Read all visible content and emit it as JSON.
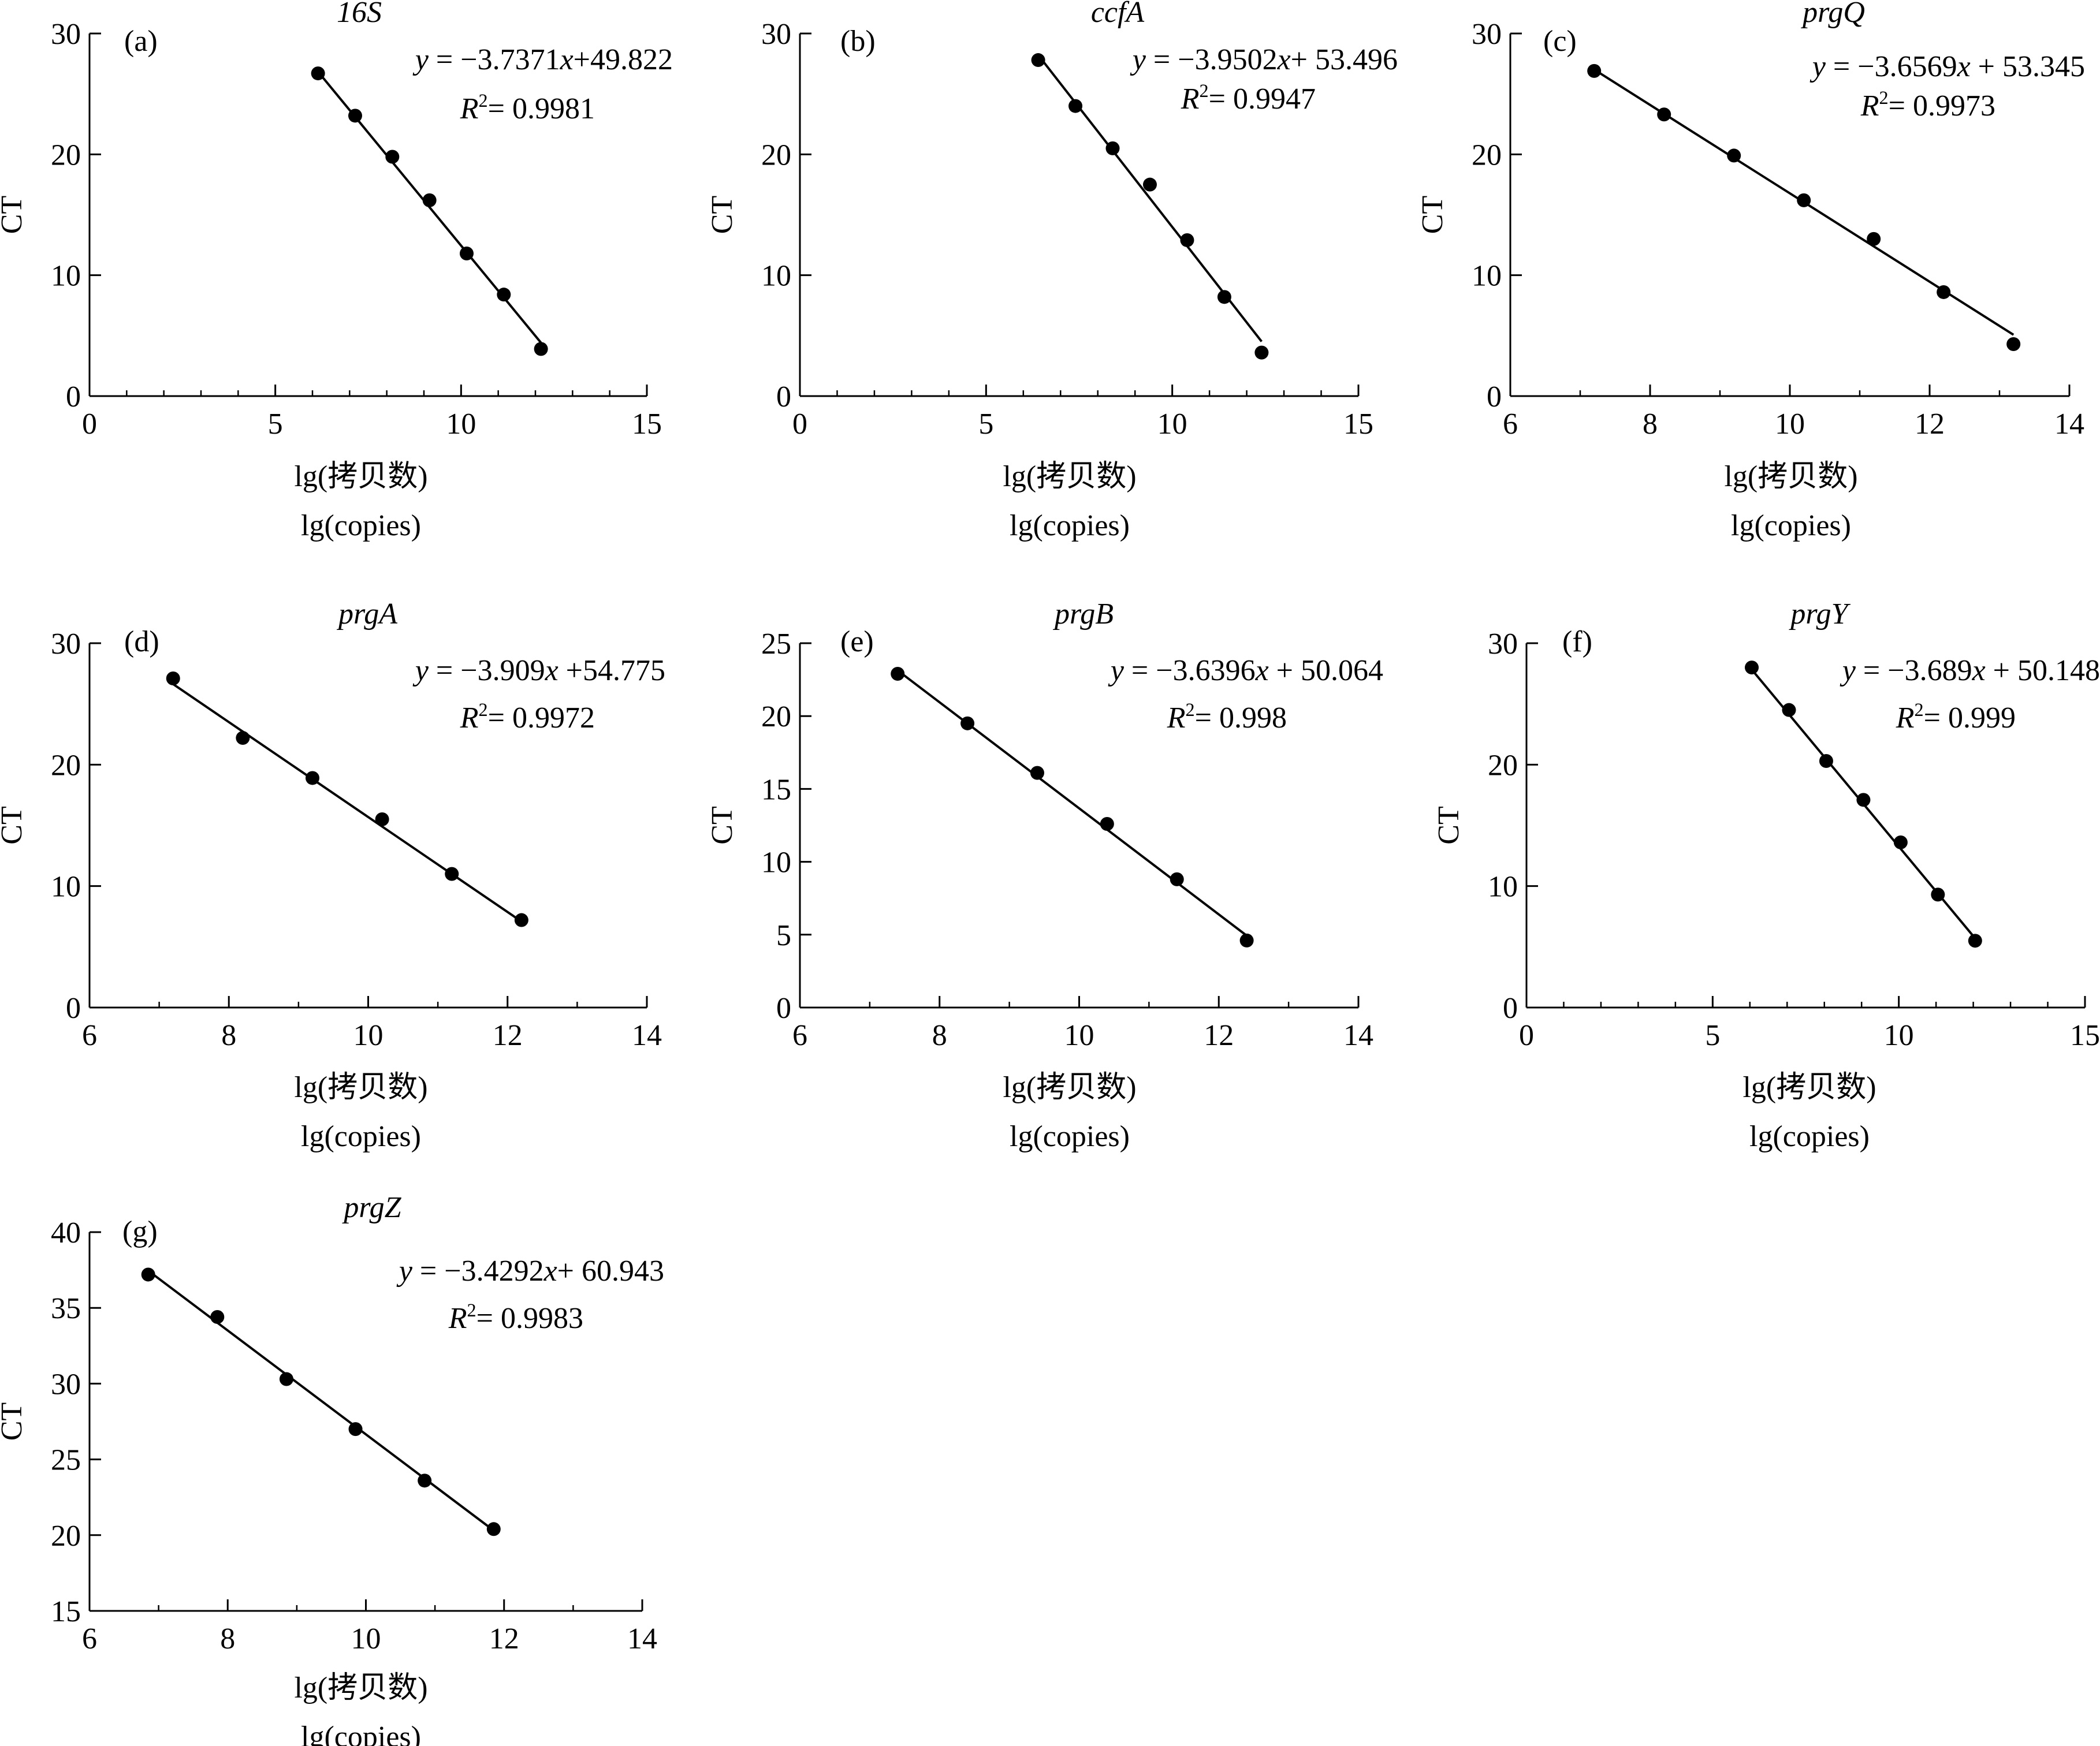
{
  "figure": {
    "xlabel_cn": "lg(拷贝数)",
    "xlabel_en": "lg(copies)",
    "ylabel": "CT"
  },
  "chart_data": [
    {
      "type": "scatter",
      "panel": "(a)",
      "title": "16S",
      "equation": {
        "y": "y",
        "rest": " = −3.7371",
        "x": "x",
        "rest2": "+49.822"
      },
      "r2": {
        "r": "R",
        "sup": "2",
        "rest": "= 0.9981"
      },
      "xlabel": "lg(拷贝数)",
      "xlabel2": "lg(copies)",
      "ylabel": "CT",
      "xlim": [
        0,
        15
      ],
      "ylim": [
        0,
        30
      ],
      "xticks": [
        0,
        5,
        10,
        15
      ],
      "yticks": [
        0,
        10,
        20,
        30
      ],
      "minor_x": 1,
      "points": {
        "x": [
          6.15,
          7.15,
          8.15,
          9.15,
          10.15,
          11.15,
          12.15
        ],
        "y": [
          26.7,
          23.2,
          19.8,
          16.2,
          11.8,
          8.4,
          3.9
        ]
      },
      "fit": {
        "slope": -3.7371,
        "intercept": 49.822,
        "x_range": [
          6.15,
          12.15
        ]
      }
    },
    {
      "type": "scatter",
      "panel": "(b)",
      "title": "ccfA",
      "equation": {
        "y": "y",
        "rest": " = −3.9502",
        "x": "x",
        "rest2": "+ 53.496"
      },
      "r2": {
        "r": "R",
        "sup": "2",
        "rest": "= 0.9947"
      },
      "xlabel": "lg(拷贝数)",
      "xlabel2": "lg(copies)",
      "ylabel": "CT",
      "xlim": [
        0,
        15
      ],
      "ylim": [
        0,
        30
      ],
      "xticks": [
        0,
        5,
        10,
        15
      ],
      "yticks": [
        0,
        10,
        20,
        30
      ],
      "minor_x": 1,
      "points": {
        "x": [
          6.4,
          7.4,
          8.4,
          9.4,
          10.4,
          11.4,
          12.4
        ],
        "y": [
          27.8,
          24.0,
          20.5,
          17.5,
          12.9,
          8.2,
          3.6
        ]
      },
      "fit": {
        "slope": -3.9502,
        "intercept": 53.496,
        "x_range": [
          6.4,
          12.4
        ]
      }
    },
    {
      "type": "scatter",
      "panel": "(c)",
      "title": "prgQ",
      "equation": {
        "y": "y",
        "rest": " = −3.6569",
        "x": "x",
        "rest2": " + 53.345"
      },
      "r2": {
        "r": "R",
        "sup": "2",
        "rest": "= 0.9973"
      },
      "xlabel": "lg(拷贝数)",
      "xlabel2": "lg(copies)",
      "ylabel": "CT",
      "xlim": [
        6,
        14
      ],
      "ylim": [
        0,
        30
      ],
      "xticks": [
        6,
        8,
        10,
        12,
        14
      ],
      "yticks": [
        0,
        10,
        20,
        30
      ],
      "minor_x": 1,
      "points": {
        "x": [
          7.2,
          8.2,
          9.2,
          10.2,
          11.2,
          12.2,
          13.2
        ],
        "y": [
          26.9,
          23.3,
          19.9,
          16.2,
          13.0,
          8.6,
          4.3
        ]
      },
      "fit": {
        "slope": -3.6569,
        "intercept": 53.345,
        "x_range": [
          7.2,
          13.2
        ]
      }
    },
    {
      "type": "scatter",
      "panel": "(d)",
      "title": "prgA",
      "equation": {
        "y": "y",
        "rest": " = −3.909",
        "x": "x",
        "rest2": " +54.775"
      },
      "r2": {
        "r": "R",
        "sup": "2",
        "rest": "= 0.9972"
      },
      "xlabel": "lg(拷贝数)",
      "xlabel2": "lg(copies)",
      "ylabel": "CT",
      "xlim": [
        6,
        14
      ],
      "ylim": [
        0,
        30
      ],
      "xticks": [
        6,
        8,
        10,
        12,
        14
      ],
      "yticks": [
        0,
        10,
        20,
        30
      ],
      "minor_x": 1,
      "points": {
        "x": [
          7.2,
          8.2,
          9.2,
          10.2,
          11.2,
          12.2
        ],
        "y": [
          27.1,
          22.2,
          18.9,
          15.5,
          11.0,
          7.2
        ]
      },
      "fit": {
        "slope": -3.909,
        "intercept": 54.775,
        "x_range": [
          7.2,
          12.2
        ]
      }
    },
    {
      "type": "scatter",
      "panel": "(e)",
      "title": "prgB",
      "equation": {
        "y": "y",
        "rest": " = −3.6396",
        "x": "x",
        "rest2": " + 50.064"
      },
      "r2": {
        "r": "R",
        "sup": "2",
        "rest": "= 0.998"
      },
      "xlabel": "lg(拷贝数)",
      "xlabel2": "lg(copies)",
      "ylabel": "CT",
      "xlim": [
        6,
        14
      ],
      "ylim": [
        0,
        25
      ],
      "xticks": [
        6,
        8,
        10,
        12,
        14
      ],
      "yticks": [
        0,
        5,
        10,
        15,
        20,
        25
      ],
      "minor_x": 1,
      "points": {
        "x": [
          7.4,
          8.4,
          9.4,
          10.4,
          11.4,
          12.4
        ],
        "y": [
          22.9,
          19.5,
          16.1,
          12.6,
          8.8,
          4.6
        ]
      },
      "fit": {
        "slope": -3.6396,
        "intercept": 50.064,
        "x_range": [
          7.4,
          12.4
        ]
      }
    },
    {
      "type": "scatter",
      "panel": "(f)",
      "title": "prgY",
      "equation": {
        "y": "y",
        "rest": " = −3.689",
        "x": "x",
        "rest2": " + 50.148"
      },
      "r2": {
        "r": "R",
        "sup": "2",
        "rest": "= 0.999"
      },
      "xlabel": "lg(拷贝数)",
      "xlabel2": "lg(copies)",
      "ylabel": "CT",
      "xlim": [
        0,
        15
      ],
      "ylim": [
        0,
        30
      ],
      "xticks": [
        0,
        5,
        10,
        15
      ],
      "yticks": [
        0,
        10,
        20,
        30
      ],
      "minor_x": 1,
      "points": {
        "x": [
          6.05,
          7.05,
          8.05,
          9.05,
          10.05,
          11.05,
          12.05
        ],
        "y": [
          28.0,
          24.5,
          20.3,
          17.1,
          13.6,
          9.3,
          5.5
        ]
      },
      "fit": {
        "slope": -3.689,
        "intercept": 50.148,
        "x_range": [
          6.05,
          12.05
        ]
      }
    },
    {
      "type": "scatter",
      "panel": "(g)",
      "title": "prgZ",
      "equation": {
        "y": "y",
        "rest": " = −3.4292",
        "x": "x",
        "rest2": "+ 60.943"
      },
      "r2": {
        "r": "R",
        "sup": "2",
        "rest": "= 0.9983"
      },
      "xlabel": "lg(拷贝数)",
      "xlabel2": "lg(copies)",
      "ylabel": "CT",
      "xlim": [
        6,
        14
      ],
      "ylim": [
        15,
        40
      ],
      "xticks": [
        6,
        8,
        10,
        12,
        14
      ],
      "yticks": [
        15,
        20,
        25,
        30,
        35,
        40
      ],
      "minor_x": 1,
      "points": {
        "x": [
          6.85,
          7.85,
          8.85,
          9.85,
          10.85,
          11.85
        ],
        "y": [
          37.2,
          34.4,
          30.3,
          27.0,
          23.6,
          20.4
        ]
      },
      "fit": {
        "slope": -3.4292,
        "intercept": 60.943,
        "x_range": [
          6.85,
          11.85
        ]
      }
    }
  ]
}
